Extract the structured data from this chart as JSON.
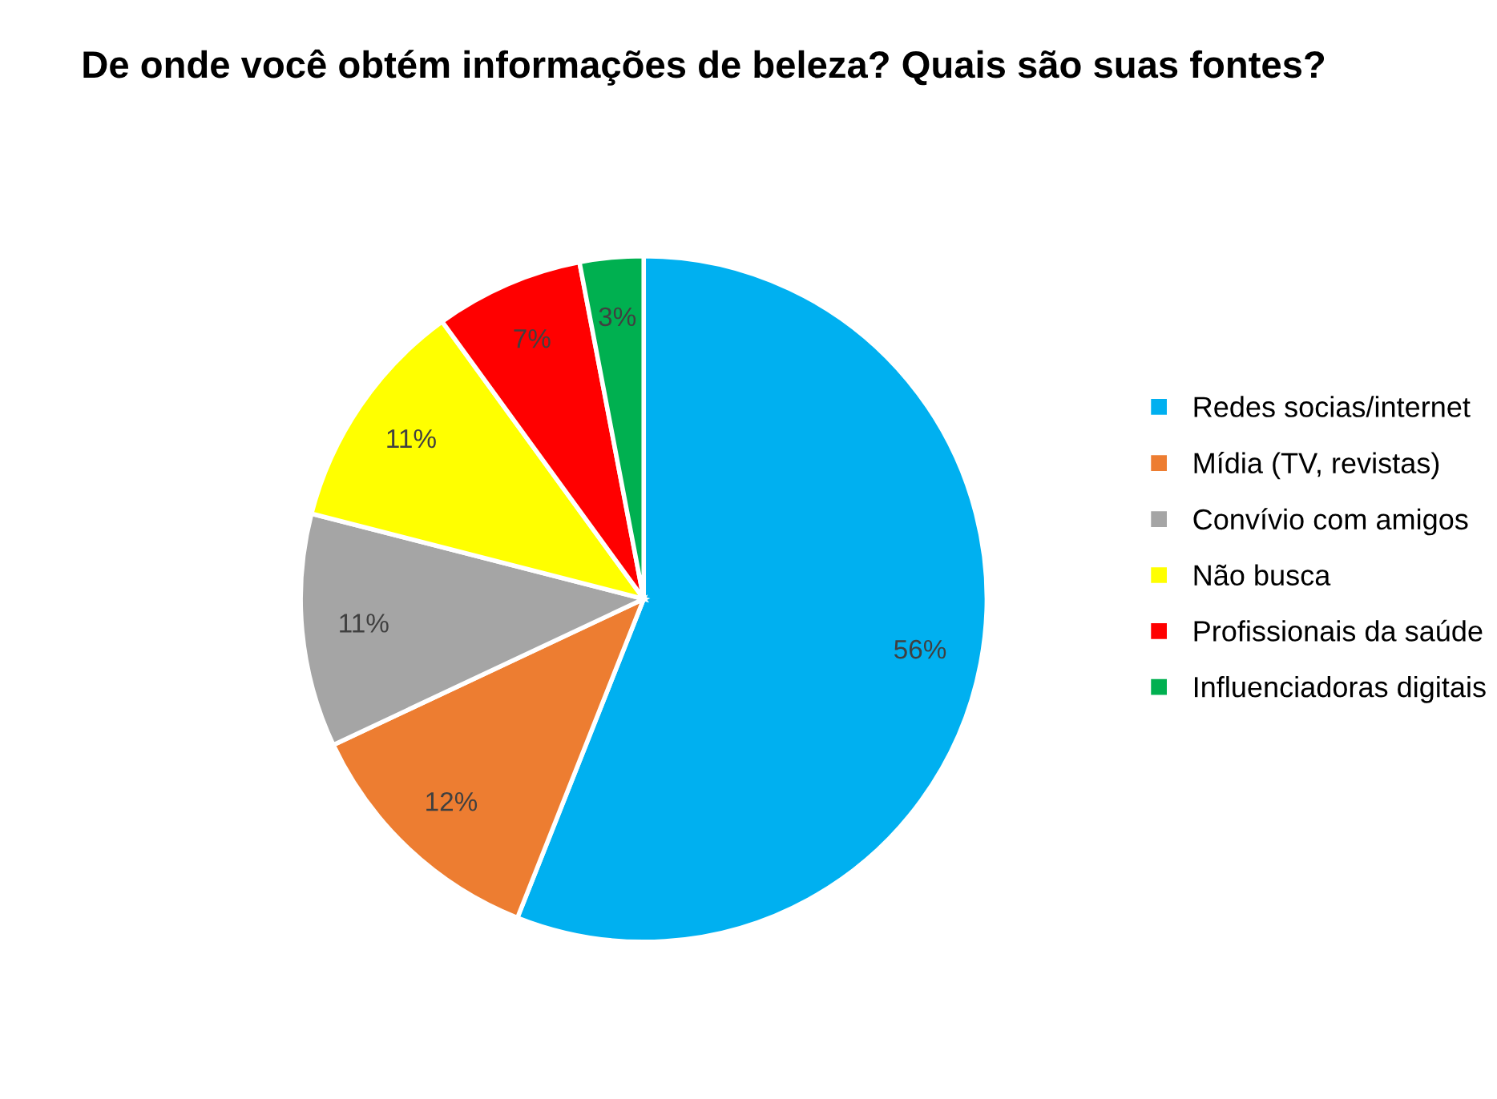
{
  "chart_data": {
    "type": "pie",
    "title": "De onde você obtém informações de beleza? Quais são suas fontes?",
    "categories": [
      "Redes socias/internet",
      "Mídia (TV, revistas)",
      "Convívio com amigos",
      "Não busca",
      "Profissionais da saúde",
      "Influenciadoras digitais"
    ],
    "values": [
      56,
      12,
      11,
      11,
      7,
      3
    ],
    "value_labels": [
      "56%",
      "12%",
      "11%",
      "11%",
      "7%",
      "3%"
    ],
    "colors": [
      "#00b0f0",
      "#ed7d31",
      "#a5a5a5",
      "#ffff00",
      "#ff0000",
      "#00b050"
    ],
    "legend": "right"
  }
}
